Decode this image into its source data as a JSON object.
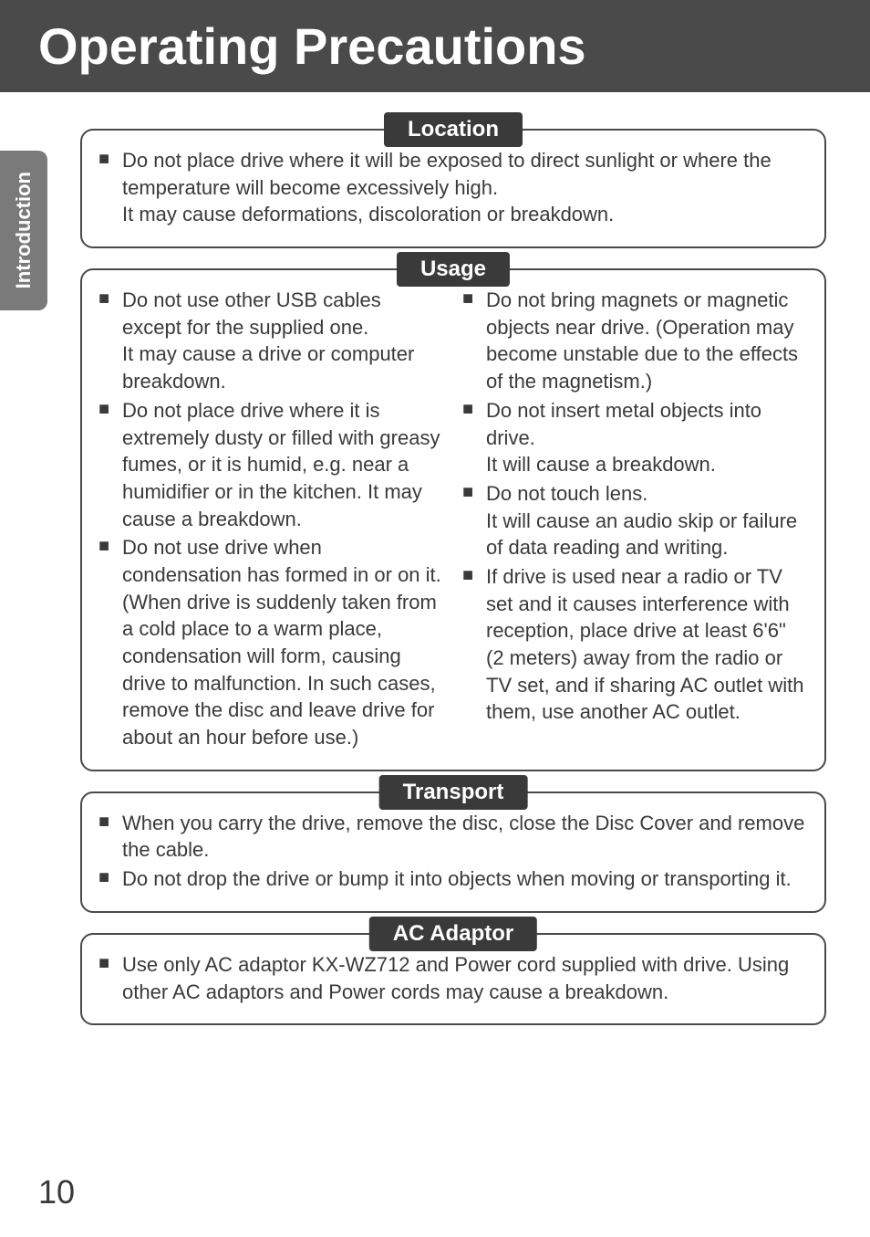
{
  "page": {
    "title": "Operating Precautions",
    "side_tab": "Introduction",
    "page_number": "10"
  },
  "sections": {
    "location": {
      "label": "Location",
      "items": [
        "Do not place drive where it will be exposed to direct sunlight or where the temperature will become excessively high.\nIt may cause deformations, discoloration or breakdown."
      ]
    },
    "usage": {
      "label": "Usage",
      "left": [
        "Do not use other USB cables except for the supplied one.\nIt may cause a drive or computer breakdown.",
        "Do not place drive where it is extremely dusty or filled with greasy fumes, or it is humid, e.g. near a humidifier or in the kitchen. It may cause a breakdown.",
        "Do not use drive when condensation has formed in or on it. (When drive is suddenly taken from a cold place to a warm place, condensation will form, causing drive to malfunction. In such cases, remove the disc and leave drive for about an hour before use.)"
      ],
      "right": [
        "Do not bring magnets or magnetic objects near drive. (Operation may become unstable due to the effects of the magnetism.)",
        "Do not insert metal objects into drive.\nIt will cause a breakdown.",
        "Do not touch lens.\nIt will cause an audio skip or failure of data reading and writing.",
        "If drive is used near a radio or TV set and it causes interference with reception, place drive at least 6'6\" (2 meters) away from the radio or TV set, and if sharing AC outlet with them, use another AC outlet."
      ]
    },
    "transport": {
      "label": "Transport",
      "items": [
        "When you carry the drive, remove the disc, close the Disc Cover and remove the cable.",
        "Do not drop the drive or bump it into objects when moving or transporting it."
      ]
    },
    "ac_adaptor": {
      "label": "AC Adaptor",
      "items": [
        "Use only AC adaptor KX-WZ712 and Power cord supplied with drive. Using other AC adaptors and Power cords may cause a breakdown."
      ]
    }
  }
}
